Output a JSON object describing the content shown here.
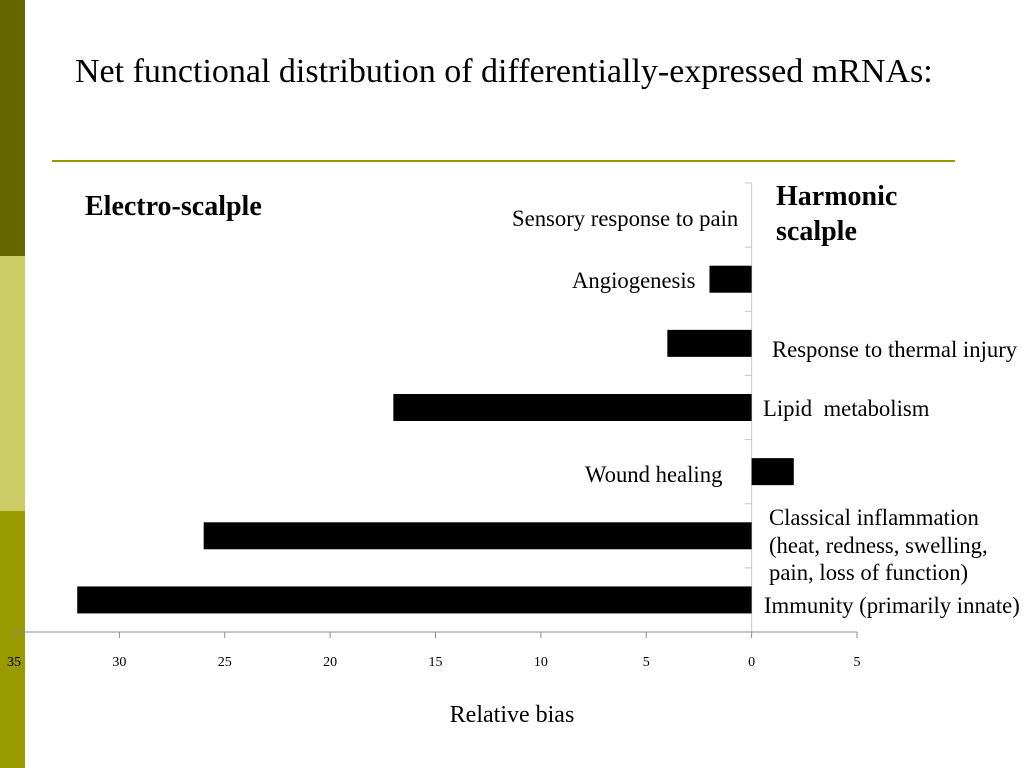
{
  "slide": {
    "title": "Net functional distribution of differentially-expressed mRNAs:"
  },
  "theme": {
    "strip_top": "#666600",
    "strip_middle": "#cccc66",
    "strip_bottom": "#999900",
    "rule": "#999900",
    "axis_x": "#8c8c8c",
    "axis_y": "#c8c8c8"
  },
  "chart_data": {
    "type": "bar",
    "orientation": "horizontal",
    "xlabel": "Relative bias",
    "categories": [
      "Sensory response to pain",
      "Angiogenesis",
      "Response to thermal injury",
      "Lipid  metabolism",
      "Wound healing",
      "Classical inflammation\n(heat, redness, swelling,\npain, loss of function)",
      "Immunity (primarily innate)"
    ],
    "values": [
      0,
      -2,
      -4,
      -17,
      2,
      -26,
      -32
    ],
    "xlim": [
      -35,
      5
    ],
    "x_ticks": [
      -35,
      -30,
      -25,
      -20,
      -15,
      -10,
      -5,
      0,
      5
    ],
    "x_tick_labels": [
      "35",
      "30",
      "25",
      "20",
      "15",
      "10",
      "5",
      "0",
      "5"
    ],
    "side_labels": {
      "left": "Electro-scalple",
      "right": "Harmonic scalple"
    },
    "grid": false,
    "bar_color": "#000000"
  }
}
